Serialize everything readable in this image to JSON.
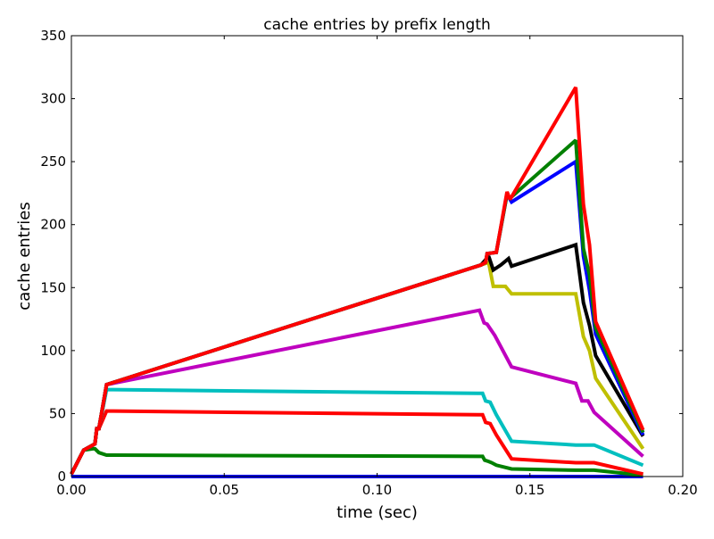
{
  "chart_data": {
    "type": "line",
    "title": "cache entries by prefix length",
    "xlabel": "time (sec)",
    "ylabel": "cache entries",
    "xlim": [
      0.0,
      0.2
    ],
    "ylim": [
      0,
      350
    ],
    "xticks": [
      0.0,
      0.05,
      0.1,
      0.15,
      0.2
    ],
    "xtick_labels": [
      "0.00",
      "0.05",
      "0.10",
      "0.15",
      "0.20"
    ],
    "yticks": [
      0,
      50,
      100,
      150,
      200,
      250,
      300,
      350
    ],
    "ytick_labels": [
      "0",
      "50",
      "100",
      "150",
      "200",
      "250",
      "300",
      "350"
    ],
    "grid": false,
    "legend": "none",
    "series": [
      {
        "color": "#0000ff",
        "points": [
          [
            0.0,
            0
          ],
          [
            0.003,
            0
          ],
          [
            0.134,
            0
          ],
          [
            0.187,
            0
          ]
        ]
      },
      {
        "color": "#008000",
        "points": [
          [
            0.0,
            2
          ],
          [
            0.004,
            21
          ],
          [
            0.007,
            22
          ],
          [
            0.0077,
            22
          ],
          [
            0.009,
            19
          ],
          [
            0.0115,
            17
          ],
          [
            0.133,
            16
          ],
          [
            0.1345,
            16
          ],
          [
            0.1352,
            13
          ],
          [
            0.1365,
            12
          ],
          [
            0.1375,
            11
          ],
          [
            0.139,
            9
          ],
          [
            0.144,
            6
          ],
          [
            0.165,
            5
          ],
          [
            0.171,
            5
          ],
          [
            0.187,
            1
          ]
        ]
      },
      {
        "color": "#ff0000",
        "points": [
          [
            0.0,
            2
          ],
          [
            0.004,
            21
          ],
          [
            0.007,
            25
          ],
          [
            0.0077,
            26
          ],
          [
            0.0083,
            38
          ],
          [
            0.009,
            38
          ],
          [
            0.0115,
            52
          ],
          [
            0.133,
            49
          ],
          [
            0.1345,
            49
          ],
          [
            0.1355,
            43
          ],
          [
            0.137,
            42
          ],
          [
            0.139,
            33
          ],
          [
            0.144,
            14
          ],
          [
            0.165,
            11
          ],
          [
            0.171,
            11
          ],
          [
            0.187,
            2
          ]
        ]
      },
      {
        "color": "#00bfbf",
        "points": [
          [
            0.0,
            2
          ],
          [
            0.004,
            21
          ],
          [
            0.007,
            25
          ],
          [
            0.0077,
            26
          ],
          [
            0.0083,
            38
          ],
          [
            0.009,
            38
          ],
          [
            0.0115,
            69
          ],
          [
            0.133,
            66
          ],
          [
            0.1345,
            66
          ],
          [
            0.1355,
            60
          ],
          [
            0.137,
            59
          ],
          [
            0.139,
            49
          ],
          [
            0.144,
            28
          ],
          [
            0.165,
            25
          ],
          [
            0.171,
            25
          ],
          [
            0.187,
            9
          ]
        ]
      },
      {
        "color": "#bf00bf",
        "points": [
          [
            0.0,
            2
          ],
          [
            0.004,
            21
          ],
          [
            0.007,
            25
          ],
          [
            0.0077,
            26
          ],
          [
            0.0083,
            38
          ],
          [
            0.009,
            38
          ],
          [
            0.0115,
            73
          ],
          [
            0.1335,
            132
          ],
          [
            0.135,
            122
          ],
          [
            0.136,
            121
          ],
          [
            0.1385,
            112
          ],
          [
            0.144,
            87
          ],
          [
            0.165,
            74
          ],
          [
            0.167,
            60
          ],
          [
            0.169,
            60
          ],
          [
            0.171,
            51
          ],
          [
            0.187,
            16
          ]
        ]
      },
      {
        "color": "#bfbf00",
        "points": [
          [
            0.0,
            2
          ],
          [
            0.004,
            21
          ],
          [
            0.007,
            25
          ],
          [
            0.0077,
            26
          ],
          [
            0.0083,
            38
          ],
          [
            0.009,
            38
          ],
          [
            0.0115,
            73
          ],
          [
            0.134,
            168
          ],
          [
            0.1365,
            170
          ],
          [
            0.138,
            151
          ],
          [
            0.142,
            151
          ],
          [
            0.144,
            145
          ],
          [
            0.165,
            145
          ],
          [
            0.1675,
            111
          ],
          [
            0.1695,
            100
          ],
          [
            0.1715,
            78
          ],
          [
            0.187,
            22
          ]
        ]
      },
      {
        "color": "#000000",
        "points": [
          [
            0.0,
            2
          ],
          [
            0.004,
            21
          ],
          [
            0.007,
            25
          ],
          [
            0.0077,
            26
          ],
          [
            0.0083,
            38
          ],
          [
            0.009,
            38
          ],
          [
            0.0115,
            73
          ],
          [
            0.134,
            168
          ],
          [
            0.1365,
            175
          ],
          [
            0.138,
            164
          ],
          [
            0.1405,
            168
          ],
          [
            0.143,
            173
          ],
          [
            0.144,
            167
          ],
          [
            0.165,
            184
          ],
          [
            0.1675,
            138
          ],
          [
            0.1695,
            120
          ],
          [
            0.1715,
            96
          ],
          [
            0.187,
            32
          ]
        ]
      },
      {
        "color": "#0000ff",
        "points": [
          [
            0.0,
            2
          ],
          [
            0.004,
            21
          ],
          [
            0.007,
            25
          ],
          [
            0.0077,
            26
          ],
          [
            0.0083,
            38
          ],
          [
            0.009,
            38
          ],
          [
            0.0115,
            73
          ],
          [
            0.134,
            168
          ],
          [
            0.1355,
            170
          ],
          [
            0.136,
            177
          ],
          [
            0.139,
            178
          ],
          [
            0.1425,
            224
          ],
          [
            0.144,
            218
          ],
          [
            0.165,
            250
          ],
          [
            0.1675,
            175
          ],
          [
            0.1695,
            148
          ],
          [
            0.1715,
            113
          ],
          [
            0.187,
            33
          ]
        ]
      },
      {
        "color": "#008000",
        "points": [
          [
            0.0,
            2
          ],
          [
            0.004,
            21
          ],
          [
            0.007,
            25
          ],
          [
            0.0077,
            26
          ],
          [
            0.0083,
            38
          ],
          [
            0.009,
            38
          ],
          [
            0.0115,
            73
          ],
          [
            0.134,
            168
          ],
          [
            0.1355,
            170
          ],
          [
            0.136,
            177
          ],
          [
            0.139,
            178
          ],
          [
            0.1425,
            224
          ],
          [
            0.1435,
            221
          ],
          [
            0.165,
            267
          ],
          [
            0.1675,
            181
          ],
          [
            0.1695,
            160
          ],
          [
            0.1715,
            118
          ],
          [
            0.187,
            35
          ]
        ]
      },
      {
        "color": "#ff0000",
        "points": [
          [
            0.0,
            2
          ],
          [
            0.004,
            21
          ],
          [
            0.007,
            25
          ],
          [
            0.0077,
            26
          ],
          [
            0.0083,
            38
          ],
          [
            0.009,
            38
          ],
          [
            0.0115,
            73
          ],
          [
            0.134,
            168
          ],
          [
            0.1355,
            170
          ],
          [
            0.136,
            177
          ],
          [
            0.139,
            178
          ],
          [
            0.1425,
            226
          ],
          [
            0.1435,
            220
          ],
          [
            0.165,
            309
          ],
          [
            0.1675,
            216
          ],
          [
            0.1695,
            184
          ],
          [
            0.1715,
            123
          ],
          [
            0.187,
            37
          ]
        ]
      }
    ]
  }
}
